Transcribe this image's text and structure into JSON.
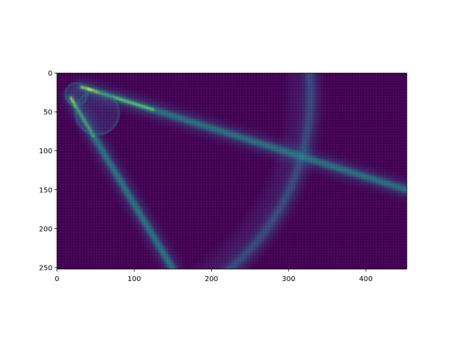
{
  "chart_data": {
    "type": "heatmap",
    "title": "",
    "xlabel": "",
    "ylabel": "",
    "colormap": "viridis",
    "xlim": [
      0,
      453
    ],
    "ylim": [
      252,
      0
    ],
    "xticks": [
      0,
      100,
      200,
      300,
      400
    ],
    "yticks": [
      0,
      50,
      100,
      150,
      200,
      250
    ],
    "grid": false,
    "background_value_color": "#440154",
    "features": [
      {
        "kind": "beam",
        "from": [
          32,
          18
        ],
        "to": [
          453,
          150
        ],
        "intensity": 0.45
      },
      {
        "kind": "beam",
        "from": [
          18,
          32
        ],
        "to": [
          150,
          252
        ],
        "intensity": 0.45
      },
      {
        "kind": "arc",
        "center": [
          28,
          26
        ],
        "radius": 300,
        "intensity": 0.22
      },
      {
        "kind": "source",
        "center": [
          25,
          27
        ],
        "radius": 14
      },
      {
        "kind": "source",
        "center": [
          52,
          51
        ],
        "radius": 28
      }
    ]
  }
}
